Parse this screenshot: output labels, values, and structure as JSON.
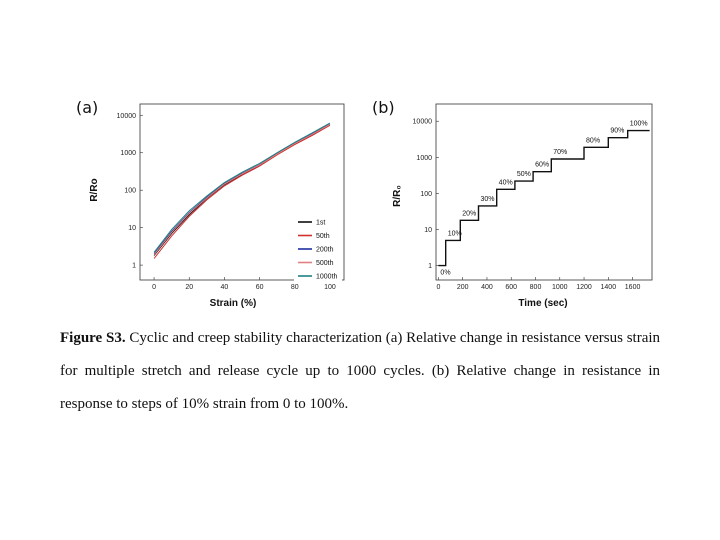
{
  "caption": {
    "label": "Figure S3.",
    "text": "Cyclic and creep stability characterization (a) Relative change in resistance versus strain for multiple stretch and release cycle up to 1000 cycles. (b) Relative change in resistance in response to steps of 10% strain from 0 to 100%."
  },
  "chart_data": [
    {
      "panel": "(a)",
      "type": "line",
      "xlabel": "Strain (%)",
      "ylabel": "R/Ro",
      "xlim": [
        -8,
        108
      ],
      "ylim": [
        0.4,
        20000
      ],
      "ylog": true,
      "xticks": [
        0,
        20,
        40,
        60,
        80,
        100
      ],
      "yticks": [
        1,
        10,
        100,
        1000,
        10000
      ],
      "ytick_labels": [
        "1",
        "10",
        "100",
        "1000",
        "10000"
      ],
      "legend_position": "bottom-right",
      "x": [
        0,
        10,
        20,
        30,
        40,
        50,
        60,
        70,
        80,
        90,
        100
      ],
      "series": [
        {
          "name": "1st",
          "color": "#111111",
          "values": [
            1.8,
            7,
            22,
            60,
            140,
            260,
            450,
            900,
            1700,
            3000,
            5500
          ]
        },
        {
          "name": "50th",
          "color": "#d03030",
          "values": [
            1.5,
            6,
            20,
            55,
            130,
            250,
            440,
            880,
            1650,
            2900,
            5400
          ]
        },
        {
          "name": "200th",
          "color": "#2030a0",
          "values": [
            2.0,
            8,
            25,
            65,
            150,
            280,
            480,
            950,
            1800,
            3200,
            5800
          ]
        },
        {
          "name": "500th",
          "color": "#e08080",
          "values": [
            1.9,
            7.5,
            24,
            62,
            145,
            270,
            470,
            930,
            1750,
            3100,
            5700
          ]
        },
        {
          "name": "1000th",
          "color": "#208080",
          "values": [
            2.2,
            9,
            28,
            70,
            160,
            300,
            520,
            1000,
            1900,
            3400,
            6200
          ]
        }
      ]
    },
    {
      "panel": "(b)",
      "type": "line",
      "xlabel": "Time (sec)",
      "ylabel": "R/R₀",
      "xlim": [
        -20,
        1760
      ],
      "ylim": [
        0.4,
        30000
      ],
      "ylog": true,
      "xticks": [
        0,
        200,
        400,
        600,
        800,
        1000,
        1200,
        1400,
        1600
      ],
      "yticks": [
        1,
        10,
        100,
        1000,
        10000
      ],
      "ytick_labels": [
        "1",
        "10",
        "100",
        "1000",
        "10000"
      ],
      "steps": [
        {
          "label": "0%",
          "t_start": 0,
          "t_end": 60,
          "value": 1
        },
        {
          "label": "10%",
          "t_start": 60,
          "t_end": 180,
          "value": 5
        },
        {
          "label": "20%",
          "t_start": 180,
          "t_end": 330,
          "value": 18
        },
        {
          "label": "30%",
          "t_start": 330,
          "t_end": 480,
          "value": 45
        },
        {
          "label": "40%",
          "t_start": 480,
          "t_end": 630,
          "value": 130
        },
        {
          "label": "50%",
          "t_start": 630,
          "t_end": 780,
          "value": 220
        },
        {
          "label": "60%",
          "t_start": 780,
          "t_end": 930,
          "value": 400
        },
        {
          "label": "70%",
          "t_start": 930,
          "t_end": 1200,
          "value": 900
        },
        {
          "label": "80%",
          "t_start": 1200,
          "t_end": 1400,
          "value": 1900
        },
        {
          "label": "90%",
          "t_start": 1400,
          "t_end": 1560,
          "value": 3500
        },
        {
          "label": "100%",
          "t_start": 1560,
          "t_end": 1740,
          "value": 5500
        }
      ]
    }
  ]
}
